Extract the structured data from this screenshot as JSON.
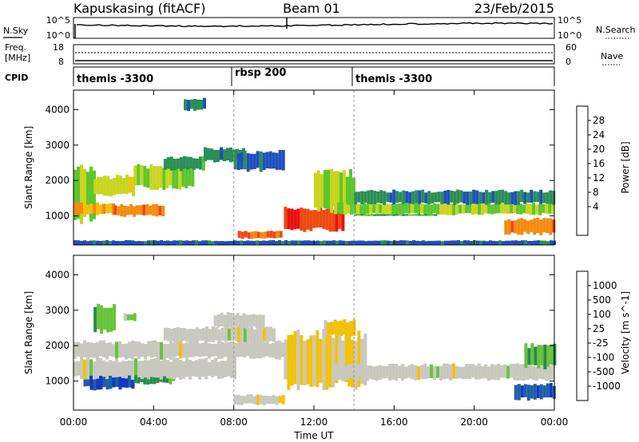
{
  "header": {
    "station": "Kapuskasing (fitACF)",
    "beam": "Beam 01",
    "date": "23/Feb/2015"
  },
  "noise_panel": {
    "left_label": "N.Sky",
    "right_label": "N.Search",
    "left_ticks": [
      "10^5",
      "10^0"
    ],
    "right_ticks": [
      "10^5",
      "10^0"
    ]
  },
  "freq_panel": {
    "label_line1": "Freq.",
    "label_line2": "[MHz]",
    "left_ticks": [
      "18",
      "8"
    ],
    "right_ticks": [
      "60",
      "0"
    ],
    "right_label": "Nave"
  },
  "cpid_panel": {
    "label": "CPID",
    "segments": [
      {
        "name": "themis -3300",
        "start_hour": 0
      },
      {
        "name": "rbsp 200",
        "start_hour": 8
      },
      {
        "name": "themis -3300",
        "start_hour": 14
      }
    ]
  },
  "time_axis": {
    "title": "Time UT",
    "ticks": [
      "00:00",
      "04:00",
      "08:00",
      "12:00",
      "16:00",
      "20:00",
      "00:00"
    ]
  },
  "power_colorbar": {
    "label": "Power [dB]",
    "ticks": [
      "28",
      "24",
      "20",
      "16",
      "12",
      "8",
      "4"
    ],
    "colors": [
      "#0a1fe8",
      "#1e4fbf",
      "#2a8e56",
      "#5cc62e",
      "#c9d420",
      "#f2c10c",
      "#f58a0f",
      "#ee4a12",
      "#e8110f"
    ]
  },
  "velocity_colorbar": {
    "label": "Velocity [m s^-1]",
    "ticks": [
      "1000",
      "500",
      "100",
      "25",
      "-25",
      "-100",
      "-500",
      "-1000"
    ],
    "colors": [
      "#1338c4",
      "#1f5ea8",
      "#2a8a4c",
      "#67c43a",
      "#c8c8c0",
      "#f2c10c",
      "#f58a0f",
      "#ee4a12",
      "#e8110f"
    ]
  },
  "chart_data": [
    {
      "type": "heatmap",
      "title": "Power",
      "xlabel": "Time UT",
      "ylabel": "Slant Range [km]",
      "xlim": [
        0,
        24
      ],
      "ylim": [
        180,
        4550
      ],
      "yticks": [
        1000,
        2000,
        3000,
        4000
      ],
      "colorbar_label": "Power [dB]",
      "colorbar_range": [
        0,
        32
      ],
      "regions": [
        {
          "t": [
            0.0,
            1.0
          ],
          "range": [
            900,
            2300
          ],
          "value": 14
        },
        {
          "t": [
            0.0,
            2.0
          ],
          "range": [
            1050,
            1350
          ],
          "value": 22
        },
        {
          "t": [
            1.0,
            3.0
          ],
          "range": [
            1600,
            2100
          ],
          "value": 16
        },
        {
          "t": [
            2.0,
            4.5
          ],
          "range": [
            1000,
            1300
          ],
          "value": 24
        },
        {
          "t": [
            3.0,
            6.0
          ],
          "range": [
            1800,
            2400
          ],
          "value": 14
        },
        {
          "t": [
            4.5,
            6.5
          ],
          "range": [
            2300,
            2650
          ],
          "value": 10
        },
        {
          "t": [
            6.5,
            8.5
          ],
          "range": [
            2550,
            2900
          ],
          "value": 8
        },
        {
          "t": [
            8.0,
            10.5
          ],
          "range": [
            2300,
            2800
          ],
          "value": 6
        },
        {
          "t": [
            8.2,
            10.3
          ],
          "range": [
            370,
            560
          ],
          "value": 26
        },
        {
          "t": [
            10.5,
            13.5
          ],
          "range": [
            600,
            1200
          ],
          "value": 28
        },
        {
          "t": [
            12.0,
            14.0
          ],
          "range": [
            1200,
            2200
          ],
          "value": 14
        },
        {
          "t": [
            13.0,
            24.0
          ],
          "range": [
            1050,
            1350
          ],
          "value": 14
        },
        {
          "t": [
            14.0,
            24.0
          ],
          "range": [
            1350,
            1700
          ],
          "value": 8
        },
        {
          "t": [
            14.0,
            18.0
          ],
          "range": [
            1000,
            1050
          ],
          "value": 10
        },
        {
          "t": [
            21.5,
            24.0
          ],
          "range": [
            500,
            900
          ],
          "value": 24
        },
        {
          "t": [
            5.5,
            6.5
          ],
          "range": [
            4000,
            4300
          ],
          "value": 8
        },
        {
          "t": [
            0.0,
            24.0
          ],
          "range": [
            180,
            300
          ],
          "value": 6
        }
      ]
    },
    {
      "type": "heatmap",
      "title": "Velocity",
      "xlabel": "Time UT",
      "ylabel": "Slant Range [km]",
      "xlim": [
        0,
        24
      ],
      "ylim": [
        180,
        4550
      ],
      "yticks": [
        1000,
        2000,
        3000,
        4000
      ],
      "colorbar_label": "Velocity [m s^-1]",
      "colorbar_range": [
        -1000,
        1000
      ],
      "regions": [
        {
          "t": [
            0.0,
            11.0
          ],
          "range": [
            1650,
            2100
          ],
          "value": 0
        },
        {
          "t": [
            4.5,
            10.0
          ],
          "range": [
            2100,
            2500
          ],
          "value": 0
        },
        {
          "t": [
            7.0,
            9.5
          ],
          "range": [
            2500,
            2900
          ],
          "value": 0
        },
        {
          "t": [
            0.5,
            3.0
          ],
          "range": [
            800,
            1350
          ],
          "value": -800
        },
        {
          "t": [
            3.0,
            5.0
          ],
          "range": [
            950,
            1350
          ],
          "value": -400
        },
        {
          "t": [
            0.0,
            8.0
          ],
          "range": [
            1100,
            1600
          ],
          "value": 0
        },
        {
          "t": [
            1.0,
            2.0
          ],
          "range": [
            2400,
            3100
          ],
          "value": -300
        },
        {
          "t": [
            2.5,
            3.0
          ],
          "range": [
            2700,
            2900
          ],
          "value": -100
        },
        {
          "t": [
            10.5,
            14.5
          ],
          "range": [
            900,
            2300
          ],
          "value": 150
        },
        {
          "t": [
            12.5,
            14.0
          ],
          "range": [
            2300,
            2700
          ],
          "value": 200
        },
        {
          "t": [
            8.0,
            10.5
          ],
          "range": [
            350,
            600
          ],
          "value": 60
        },
        {
          "t": [
            13.0,
            24.0
          ],
          "range": [
            1050,
            1450
          ],
          "value": 0
        },
        {
          "t": [
            22.0,
            24.0
          ],
          "range": [
            500,
            900
          ],
          "value": -700
        },
        {
          "t": [
            22.5,
            24.0
          ],
          "range": [
            1400,
            2000
          ],
          "value": -300
        }
      ]
    }
  ]
}
